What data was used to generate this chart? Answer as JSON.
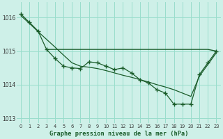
{
  "title": "Graphe pression niveau de la mer (hPa)",
  "background_color": "#cef0e8",
  "grid_color": "#99ddcc",
  "line_color": "#1a5c2a",
  "x_hours": [
    0,
    1,
    2,
    3,
    4,
    5,
    6,
    7,
    8,
    9,
    10,
    11,
    12,
    13,
    14,
    15,
    16,
    17,
    18,
    19,
    20,
    21,
    22,
    23
  ],
  "series_main": [
    1016.1,
    1015.85,
    1015.6,
    1015.05,
    1014.78,
    1014.55,
    1014.5,
    1014.48,
    1014.68,
    1014.65,
    1014.55,
    1014.45,
    1014.5,
    1014.35,
    1014.15,
    1014.05,
    1013.85,
    1013.75,
    1013.42,
    1013.42,
    1013.42,
    1014.3,
    1014.65,
    1015.0
  ],
  "series_trend": [
    1016.05,
    1015.82,
    1015.58,
    1015.35,
    1015.12,
    1014.88,
    1014.65,
    1014.55,
    1014.52,
    1014.48,
    1014.42,
    1014.35,
    1014.28,
    1014.22,
    1014.15,
    1014.08,
    1014.0,
    1013.93,
    1013.85,
    1013.75,
    1013.65,
    1014.25,
    1014.6,
    1014.95
  ],
  "flat_x": [
    3,
    4,
    5,
    6,
    7,
    8,
    9,
    10,
    11,
    12,
    13,
    14,
    15,
    16,
    17,
    18,
    19,
    20,
    21,
    22,
    23
  ],
  "flat_y": [
    1015.05,
    1015.05,
    1015.05,
    1015.05,
    1015.05,
    1015.05,
    1015.05,
    1015.05,
    1015.05,
    1015.05,
    1015.05,
    1015.05,
    1015.05,
    1015.05,
    1015.05,
    1015.05,
    1015.05,
    1015.05,
    1015.05,
    1015.05,
    1015.0
  ],
  "ylim": [
    1012.85,
    1016.45
  ],
  "yticks": [
    1013,
    1014,
    1015,
    1016
  ],
  "xticks": [
    0,
    1,
    2,
    3,
    4,
    5,
    6,
    7,
    8,
    9,
    10,
    11,
    12,
    13,
    14,
    15,
    16,
    17,
    18,
    19,
    20,
    21,
    22,
    23
  ]
}
